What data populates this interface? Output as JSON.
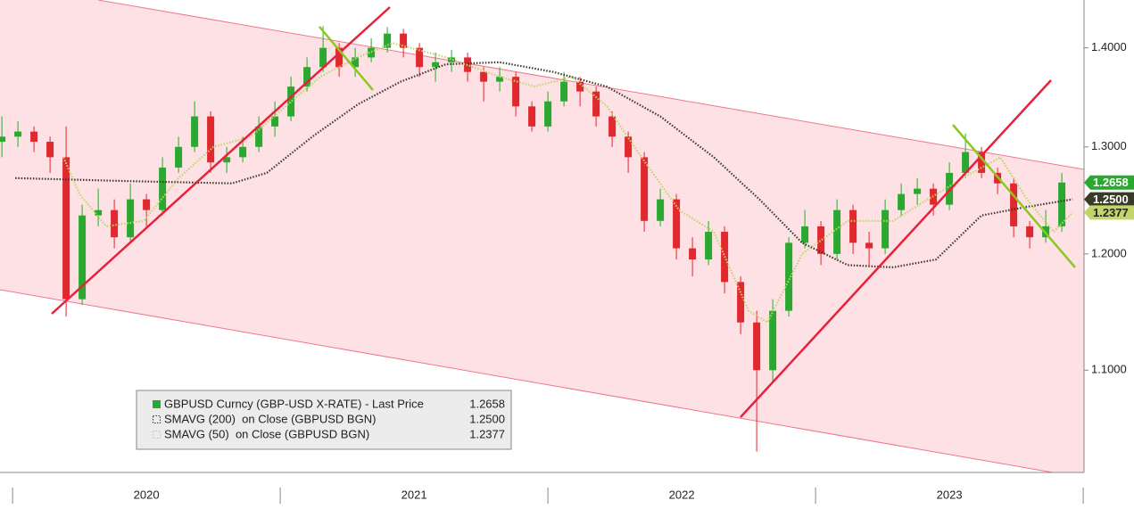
{
  "chart_data": {
    "type": "candlestick",
    "log_scale": true,
    "xlim": [
      2019.953,
      2024.003
    ],
    "ylim": [
      1.019,
      1.451
    ],
    "yticks": [
      {
        "value": 1.1,
        "label": "1.1000"
      },
      {
        "value": 1.2,
        "label": "1.2000"
      },
      {
        "value": 1.3,
        "label": "1.3000"
      },
      {
        "value": 1.4,
        "label": "1.4000"
      }
    ],
    "xticks": [
      2020,
      2021,
      2022,
      2023,
      2024
    ],
    "xtick_labels": [
      "2020",
      "2021",
      "2022",
      "2023"
    ],
    "price": {
      "name": "GBPUSD Curncy (GBP-USD X-RATE) - Last Price",
      "last_value": {
        "value": 1.2658,
        "label": "1.2658"
      },
      "color": "#2aa830",
      "up_color": "#2aa830",
      "down_color": "#e0282e",
      "x": [
        2019.96,
        2020.02,
        2020.08,
        2020.14,
        2020.2,
        2020.26,
        2020.32,
        2020.38,
        2020.44,
        2020.5,
        2020.56,
        2020.62,
        2020.68,
        2020.74,
        2020.8,
        2020.86,
        2020.92,
        2020.98,
        2021.04,
        2021.1,
        2021.16,
        2021.22,
        2021.28,
        2021.34,
        2021.4,
        2021.46,
        2021.52,
        2021.58,
        2021.64,
        2021.7,
        2021.76,
        2021.82,
        2021.88,
        2021.94,
        2022.0,
        2022.06,
        2022.12,
        2022.18,
        2022.24,
        2022.3,
        2022.36,
        2022.42,
        2022.48,
        2022.54,
        2022.6,
        2022.66,
        2022.72,
        2022.78,
        2022.84,
        2022.9,
        2022.96,
        2023.02,
        2023.08,
        2023.14,
        2023.2,
        2023.26,
        2023.32,
        2023.38,
        2023.44,
        2023.5,
        2023.56,
        2023.62,
        2023.68,
        2023.74,
        2023.8,
        2023.86,
        2023.92
      ],
      "open": [
        1.305,
        1.31,
        1.315,
        1.305,
        1.29,
        1.16,
        1.235,
        1.24,
        1.215,
        1.25,
        1.24,
        1.28,
        1.3,
        1.33,
        1.285,
        1.29,
        1.3,
        1.32,
        1.33,
        1.36,
        1.38,
        1.4,
        1.38,
        1.39,
        1.4,
        1.415,
        1.4,
        1.38,
        1.385,
        1.39,
        1.375,
        1.365,
        1.37,
        1.34,
        1.32,
        1.345,
        1.365,
        1.355,
        1.33,
        1.31,
        1.29,
        1.23,
        1.25,
        1.205,
        1.195,
        1.22,
        1.175,
        1.14,
        1.1,
        1.15,
        1.21,
        1.225,
        1.2,
        1.24,
        1.21,
        1.205,
        1.24,
        1.255,
        1.26,
        1.245,
        1.275,
        1.295,
        1.275,
        1.265,
        1.225,
        1.215,
        1.225
      ],
      "high": [
        1.33,
        1.325,
        1.32,
        1.31,
        1.32,
        1.245,
        1.26,
        1.25,
        1.265,
        1.255,
        1.29,
        1.31,
        1.345,
        1.335,
        1.3,
        1.31,
        1.33,
        1.345,
        1.37,
        1.39,
        1.423,
        1.405,
        1.4,
        1.41,
        1.422,
        1.42,
        1.405,
        1.395,
        1.398,
        1.395,
        1.38,
        1.38,
        1.375,
        1.345,
        1.355,
        1.375,
        1.37,
        1.36,
        1.335,
        1.315,
        1.295,
        1.26,
        1.255,
        1.215,
        1.23,
        1.225,
        1.18,
        1.15,
        1.16,
        1.215,
        1.24,
        1.23,
        1.25,
        1.245,
        1.22,
        1.25,
        1.265,
        1.27,
        1.265,
        1.285,
        1.313,
        1.3,
        1.28,
        1.27,
        1.23,
        1.24,
        1.275
      ],
      "low": [
        1.29,
        1.3,
        1.295,
        1.275,
        1.145,
        1.155,
        1.225,
        1.205,
        1.21,
        1.225,
        1.235,
        1.275,
        1.295,
        1.275,
        1.275,
        1.285,
        1.295,
        1.31,
        1.325,
        1.355,
        1.375,
        1.37,
        1.37,
        1.385,
        1.395,
        1.39,
        1.37,
        1.365,
        1.375,
        1.365,
        1.345,
        1.355,
        1.33,
        1.315,
        1.315,
        1.34,
        1.34,
        1.32,
        1.3,
        1.275,
        1.22,
        1.225,
        1.195,
        1.18,
        1.19,
        1.165,
        1.13,
        1.035,
        1.09,
        1.145,
        1.205,
        1.19,
        1.195,
        1.2,
        1.19,
        1.2,
        1.235,
        1.245,
        1.235,
        1.24,
        1.27,
        1.27,
        1.255,
        1.215,
        1.205,
        1.21,
        1.22
      ],
      "close": [
        1.31,
        1.315,
        1.305,
        1.29,
        1.16,
        1.235,
        1.24,
        1.215,
        1.25,
        1.24,
        1.28,
        1.3,
        1.33,
        1.285,
        1.29,
        1.3,
        1.32,
        1.33,
        1.36,
        1.38,
        1.4,
        1.38,
        1.39,
        1.4,
        1.415,
        1.4,
        1.38,
        1.385,
        1.39,
        1.375,
        1.365,
        1.37,
        1.34,
        1.32,
        1.345,
        1.365,
        1.355,
        1.33,
        1.31,
        1.29,
        1.23,
        1.25,
        1.205,
        1.195,
        1.22,
        1.175,
        1.14,
        1.1,
        1.15,
        1.21,
        1.225,
        1.2,
        1.24,
        1.21,
        1.205,
        1.24,
        1.255,
        1.26,
        1.245,
        1.275,
        1.295,
        1.275,
        1.265,
        1.225,
        1.215,
        1.225,
        1.2658
      ]
    },
    "series": [
      {
        "name": "SMAVG (200)  on Close (GBPUSD BGN)",
        "color": "#3a3a2a",
        "last_value": {
          "value": 1.25,
          "label": "1.2500"
        },
        "x": [
          2020.01,
          2020.45,
          2020.82,
          2020.95,
          2021.12,
          2021.29,
          2021.45,
          2021.62,
          2021.82,
          2022.02,
          2022.22,
          2022.42,
          2022.62,
          2022.79,
          2022.95,
          2023.12,
          2023.29,
          2023.45,
          2023.62,
          2023.79,
          2023.96
        ],
        "values": [
          1.27,
          1.267,
          1.265,
          1.275,
          1.31,
          1.342,
          1.365,
          1.383,
          1.385,
          1.375,
          1.36,
          1.33,
          1.29,
          1.25,
          1.21,
          1.19,
          1.188,
          1.195,
          1.235,
          1.243,
          1.25
        ]
      },
      {
        "name": "SMAVG (50)  on Close (GBPUSD BGN)",
        "color": "#c2d46a",
        "last_value": {
          "value": 1.2377,
          "label": "1.2377"
        },
        "x": [
          2020.19,
          2020.25,
          2020.35,
          2020.49,
          2020.62,
          2020.75,
          2020.89,
          2021.02,
          2021.15,
          2021.29,
          2021.42,
          2021.62,
          2021.82,
          2021.95,
          2022.09,
          2022.22,
          2022.35,
          2022.49,
          2022.62,
          2022.75,
          2022.82,
          2022.95,
          2023.12,
          2023.29,
          2023.42,
          2023.55,
          2023.69,
          2023.79,
          2023.89,
          2023.96
        ],
        "values": [
          1.29,
          1.255,
          1.225,
          1.23,
          1.27,
          1.3,
          1.31,
          1.34,
          1.37,
          1.39,
          1.405,
          1.39,
          1.37,
          1.36,
          1.37,
          1.34,
          1.29,
          1.24,
          1.22,
          1.15,
          1.14,
          1.2,
          1.23,
          1.23,
          1.25,
          1.27,
          1.29,
          1.25,
          1.22,
          1.2377
        ]
      }
    ]
  }
}
